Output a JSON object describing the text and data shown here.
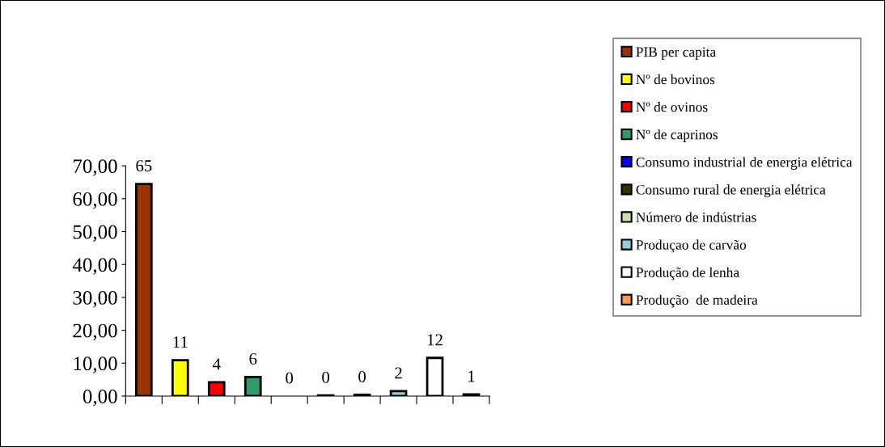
{
  "chart_data": {
    "type": "bar",
    "categories": [
      null,
      null,
      null,
      null,
      null,
      null,
      null,
      null,
      null,
      null
    ],
    "series": [
      {
        "name": "PIB per capita",
        "color": "#993300",
        "values": [
          64.5,
          null,
          null,
          null,
          null,
          null,
          null,
          null,
          null,
          null
        ],
        "value_labels": [
          "65",
          null,
          null,
          null,
          null,
          null,
          null,
          null,
          null,
          null
        ]
      },
      {
        "name": "Nº de bovinos",
        "color": "#ffff00",
        "values": [
          null,
          10.9,
          null,
          null,
          null,
          null,
          null,
          null,
          null,
          null
        ],
        "value_labels": [
          null,
          "11",
          null,
          null,
          null,
          null,
          null,
          null,
          null,
          null
        ]
      },
      {
        "name": "Nº de ovinos",
        "color": "#ff0000",
        "values": [
          null,
          null,
          4.2,
          null,
          null,
          null,
          null,
          null,
          null,
          null
        ],
        "value_labels": [
          null,
          null,
          "4",
          null,
          null,
          null,
          null,
          null,
          null,
          null
        ]
      },
      {
        "name": "Nº de caprinos",
        "color": "#339966",
        "values": [
          null,
          null,
          null,
          5.8,
          null,
          null,
          null,
          null,
          null,
          null
        ],
        "value_labels": [
          null,
          null,
          null,
          "6",
          null,
          null,
          null,
          null,
          null,
          null
        ]
      },
      {
        "name": "Consumo industrial de energia elétrica",
        "color": "#0000ff",
        "values": [
          null,
          null,
          null,
          null,
          0,
          null,
          null,
          null,
          null,
          null
        ],
        "value_labels": [
          null,
          null,
          null,
          null,
          "0",
          null,
          null,
          null,
          null,
          null
        ]
      },
      {
        "name": "Consumo rural de energia elétrica",
        "color": "#333300",
        "values": [
          null,
          null,
          null,
          null,
          null,
          0.2,
          null,
          null,
          null,
          null
        ],
        "value_labels": [
          null,
          null,
          null,
          null,
          null,
          "0",
          null,
          null,
          null,
          null
        ]
      },
      {
        "name": "Número de indústrias",
        "color": "#cce0a8",
        "values": [
          null,
          null,
          null,
          null,
          null,
          null,
          0.4,
          null,
          null,
          null
        ],
        "value_labels": [
          null,
          null,
          null,
          null,
          null,
          null,
          "0",
          null,
          null,
          null
        ]
      },
      {
        "name": "Produçao de carvão",
        "color": "#99ccdd",
        "values": [
          null,
          null,
          null,
          null,
          null,
          null,
          null,
          1.5,
          null,
          null
        ],
        "value_labels": [
          null,
          null,
          null,
          null,
          null,
          null,
          null,
          "2",
          null,
          null
        ]
      },
      {
        "name": "Produção de lenha",
        "color": "#ffffff",
        "values": [
          null,
          null,
          null,
          null,
          null,
          null,
          null,
          null,
          11.6,
          null
        ],
        "value_labels": [
          null,
          null,
          null,
          null,
          null,
          null,
          null,
          null,
          "12",
          null
        ]
      },
      {
        "name": "Produção  de madeira",
        "color": "#ff9955",
        "values": [
          null,
          null,
          null,
          null,
          null,
          null,
          null,
          null,
          null,
          0.5
        ],
        "value_labels": [
          null,
          null,
          null,
          null,
          null,
          null,
          null,
          null,
          null,
          "1"
        ]
      }
    ],
    "ylim": [
      0,
      70
    ],
    "yticks": [
      {
        "value": 0,
        "label": "0,00"
      },
      {
        "value": 10,
        "label": "10,00"
      },
      {
        "value": 20,
        "label": "20,00"
      },
      {
        "value": 30,
        "label": "30,00"
      },
      {
        "value": 40,
        "label": "40,00"
      },
      {
        "value": 50,
        "label": "50,00"
      },
      {
        "value": 60,
        "label": "60,00"
      },
      {
        "value": 70,
        "label": "70,00"
      }
    ],
    "legend": "right",
    "grid": false
  }
}
